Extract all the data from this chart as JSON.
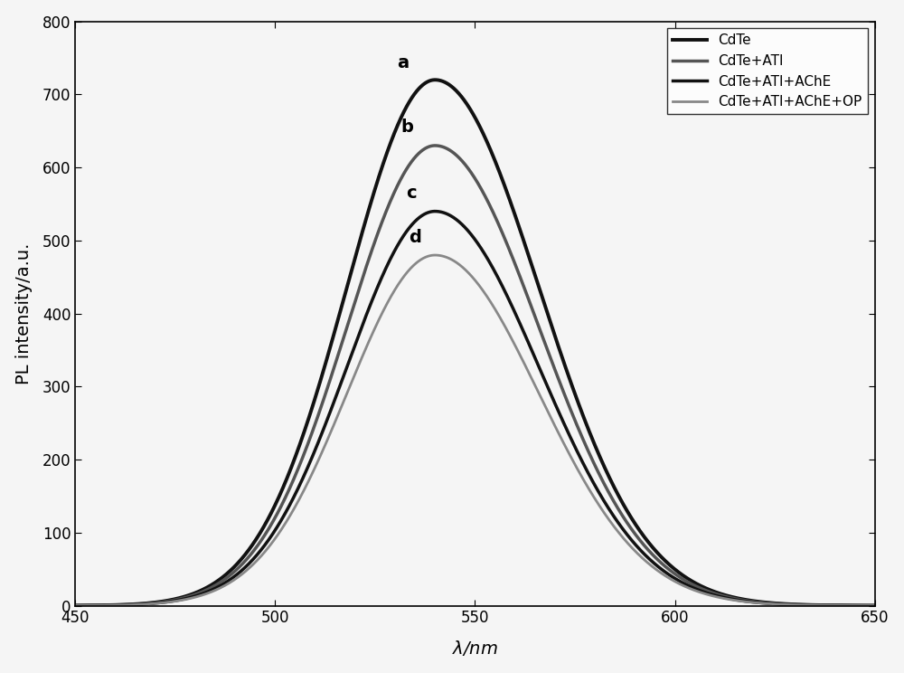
{
  "title": "",
  "xlabel": "$\\lambda$/nm",
  "ylabel": "PL intensity/a.u.",
  "xlim": [
    450,
    650
  ],
  "ylim": [
    0,
    800
  ],
  "xticks": [
    450,
    500,
    550,
    600,
    650
  ],
  "yticks": [
    0,
    100,
    200,
    300,
    400,
    500,
    600,
    700,
    800
  ],
  "peak_wavelength": 540,
  "sigma": 22,
  "curves": [
    {
      "label": "CdTe",
      "peak": 720,
      "color": "#111111",
      "linewidth": 2.8,
      "linestyle": "solid",
      "annotation": "a",
      "ann_x": 532,
      "ann_y": 732
    },
    {
      "label": "CdTe+ATI",
      "peak": 630,
      "color": "#555555",
      "linewidth": 2.5,
      "linestyle": "solid",
      "annotation": "b",
      "ann_x": 533,
      "ann_y": 643
    },
    {
      "label": "CdTe+ATI+AChE",
      "peak": 540,
      "color": "#111111",
      "linewidth": 2.5,
      "linestyle": "solid",
      "annotation": "c",
      "ann_x": 534,
      "ann_y": 553
    },
    {
      "label": "CdTe+ATI+AChE+OP",
      "peak": 480,
      "color": "#888888",
      "linewidth": 2.0,
      "linestyle": "solid",
      "annotation": "d",
      "ann_x": 535,
      "ann_y": 493
    }
  ],
  "legend_loc": "upper right",
  "background_color": "#f5f5f5",
  "annotation_fontsize": 14,
  "label_fontsize": 14,
  "tick_fontsize": 12,
  "legend_fontsize": 11
}
